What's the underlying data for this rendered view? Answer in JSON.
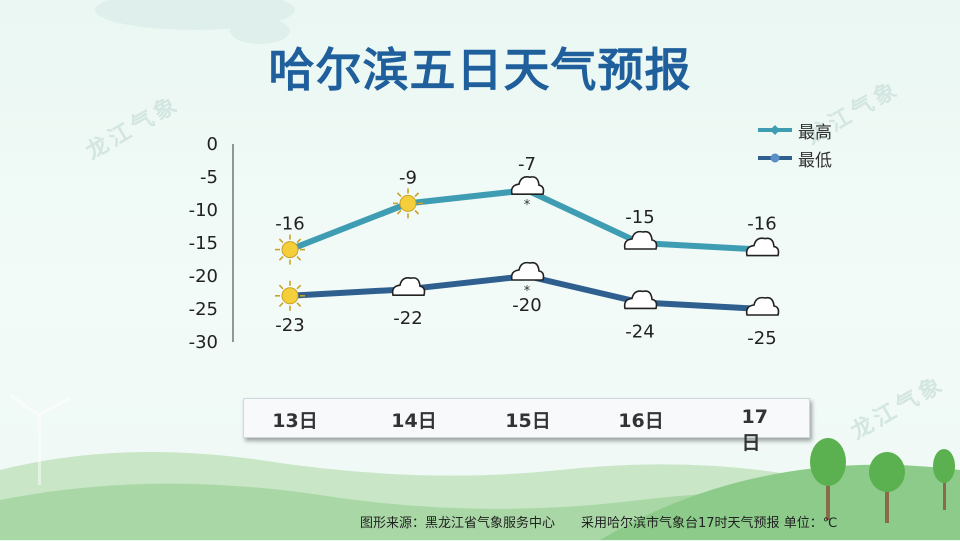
{
  "title": "哈尔滨五日天气预报",
  "watermark": "龙江气象",
  "colors": {
    "high": "#3f9db3",
    "low": "#2f5f8f",
    "title": "#1f5f9c"
  },
  "chart_data": {
    "type": "line",
    "categories": [
      "13日",
      "14日",
      "15日",
      "16日",
      "17日"
    ],
    "ylim": [
      -30,
      0
    ],
    "yticks": [
      "0",
      "-5",
      "-10",
      "-15",
      "-20",
      "-25",
      "-30"
    ],
    "series": [
      {
        "name": "最高",
        "values": [
          -16,
          -9,
          -7,
          -15,
          -16
        ],
        "icons": [
          "sun-icon",
          "sun-icon",
          "cloud-snow-icon",
          "cloud-icon",
          "cloud-icon"
        ]
      },
      {
        "name": "最低",
        "values": [
          -23,
          -22,
          -20,
          -24,
          -25
        ],
        "icons": [
          "sun-icon",
          "cloud-icon",
          "cloud-snow-icon",
          "cloud-icon",
          "cloud-icon"
        ]
      }
    ],
    "legend_position": "top-right"
  },
  "footer": {
    "source": "图形来源：黑龙江省气象服务中心",
    "note": "采用哈尔滨市气象台17时天气预报 单位：℃"
  }
}
